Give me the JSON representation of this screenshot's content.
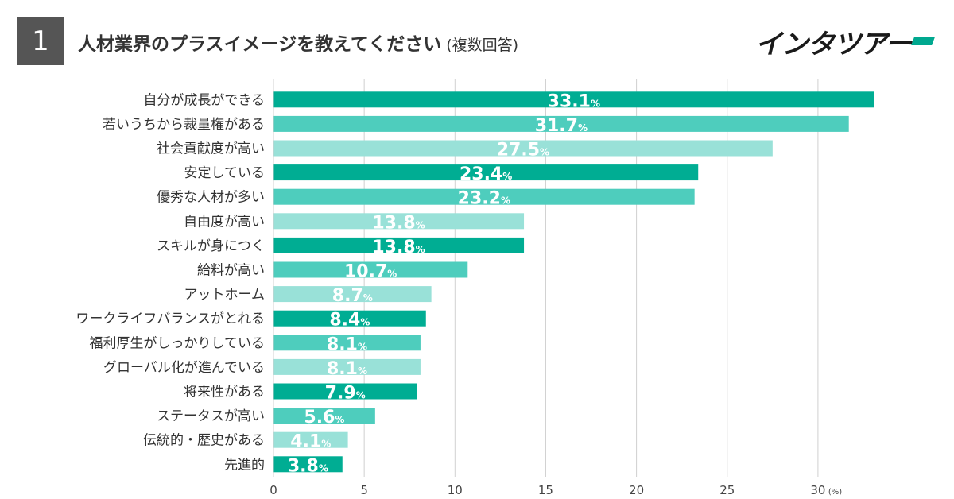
{
  "header": {
    "number": "1",
    "title": "人材業界のプラスイメージを教えてください",
    "note": "(複数回答)",
    "logo_text": "インタツアー"
  },
  "colors": {
    "dark": "#00ad93",
    "mid": "#4ecdbd",
    "light": "#99e1d8",
    "grid": "#d0d0d0",
    "badge": "#555555"
  },
  "chart_data": {
    "type": "bar",
    "orientation": "horizontal",
    "title": "人材業界のプラスイメージを教えてください",
    "xlabel": "",
    "ylabel": "",
    "unit": "(%)",
    "value_suffix": "%",
    "xlim": [
      0,
      33.5
    ],
    "ticks": [
      0,
      5,
      10,
      15,
      20,
      25,
      30
    ],
    "grid": true,
    "categories": [
      "自分が成長ができる",
      "若いうちから裁量権がある",
      "社会貢献度が高い",
      "安定している",
      "優秀な人材が多い",
      "自由度が高い",
      "スキルが身につく",
      "給料が高い",
      "アットホーム",
      "ワークライフバランスがとれる",
      "福利厚生がしっかりしている",
      "グローバル化が進んでいる",
      "将来性がある",
      "ステータスが高い",
      "伝統的・歴史がある",
      "先進的"
    ],
    "values": [
      33.1,
      31.7,
      27.5,
      23.4,
      23.2,
      13.8,
      13.8,
      10.7,
      8.7,
      8.4,
      8.1,
      8.1,
      7.9,
      5.6,
      4.1,
      3.8
    ],
    "color_cycle": [
      "dark",
      "mid",
      "light"
    ]
  }
}
